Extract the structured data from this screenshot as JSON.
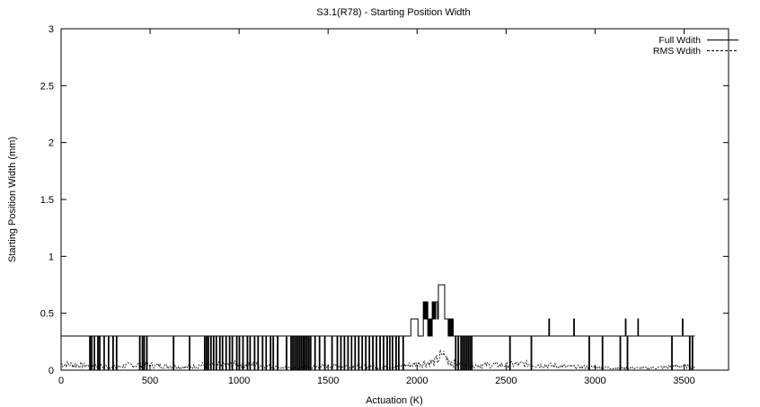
{
  "chart_data": {
    "type": "line",
    "title": "S3.1(R78) - Starting Position Width",
    "xlabel": "Actuation (K)",
    "ylabel": "Starting Position Width (mm)",
    "xlim": [
      0,
      3750
    ],
    "ylim": [
      0,
      3
    ],
    "xticks": [
      0,
      500,
      1000,
      1500,
      2000,
      2500,
      3000,
      3500
    ],
    "yticks": [
      0,
      0.5,
      1,
      1.5,
      2,
      2.5,
      3
    ],
    "legend_position": "top-right",
    "grid": false,
    "series": [
      {
        "name": "Full Wdith",
        "style": "solid",
        "color": "#000000",
        "baseline": 0.3,
        "x_range": [
          0,
          3560
        ],
        "drops_to_zero_at": [
          160,
          170,
          185,
          205,
          215,
          240,
          265,
          290,
          310,
          440,
          455,
          465,
          480,
          630,
          720,
          805,
          815,
          825,
          840,
          855,
          870,
          890,
          905,
          925,
          945,
          960,
          985,
          1000,
          1020,
          1045,
          1060,
          1085,
          1105,
          1130,
          1150,
          1175,
          1190,
          1215,
          1265,
          1290,
          1300,
          1310,
          1320,
          1330,
          1340,
          1350,
          1360,
          1370,
          1380,
          1390,
          1400,
          1425,
          1450,
          1480,
          1520,
          1550,
          1570,
          1590,
          1610,
          1630,
          1650,
          1670,
          1690,
          1710,
          1730,
          1750,
          1770,
          1790,
          1810,
          1830,
          1845,
          1860,
          1880,
          1895,
          1920,
          2050,
          2060,
          2090,
          2110,
          2200,
          2215,
          2230,
          2245,
          2255,
          2265,
          2275,
          2285,
          2295,
          2305,
          2520,
          2640,
          2965,
          3040,
          3140,
          3180,
          3430,
          3530,
          3545
        ],
        "spikes_to_0_45_at": [
          2740,
          2880,
          3170,
          3240,
          3490
        ],
        "central_region": {
          "x": [
            1960,
            1965,
            2000,
            2005,
            2030,
            2035,
            2040,
            2045,
            2050,
            2055,
            2060,
            2065,
            2070,
            2075,
            2080,
            2085,
            2090,
            2095,
            2100,
            2105,
            2110,
            2115,
            2120,
            2125,
            2150,
            2155,
            2170,
            2175,
            2180,
            2185,
            2190,
            2195,
            2200
          ],
          "y": [
            0.3,
            0.45,
            0.45,
            0.3,
            0.3,
            0.6,
            0.45,
            0.6,
            0.45,
            0.6,
            0.3,
            0.45,
            0.3,
            0.45,
            0.3,
            0.6,
            0.45,
            0.6,
            0.45,
            0.6,
            0.6,
            0.45,
            0.75,
            0.75,
            0.75,
            0.45,
            0.45,
            0.3,
            0.45,
            0.3,
            0.45,
            0.3,
            0.45
          ]
        }
      },
      {
        "name": "RMS Wdith",
        "style": "dashed",
        "color": "#000000",
        "x_range": [
          0,
          3560
        ],
        "typical_range": [
          0,
          0.1
        ],
        "peak": {
          "x": 2140,
          "y": 0.15
        },
        "sample_x": [
          0,
          100,
          200,
          300,
          400,
          500,
          600,
          700,
          800,
          900,
          1000,
          1100,
          1200,
          1300,
          1400,
          1500,
          1600,
          1700,
          1800,
          1900,
          2000,
          2100,
          2140,
          2200,
          2300,
          2400,
          2500,
          2600,
          2700,
          2800,
          2900,
          3000,
          3100,
          3200,
          3300,
          3400,
          3500,
          3560
        ],
        "sample_y": [
          0.06,
          0.05,
          0.04,
          0.03,
          0.05,
          0.05,
          0.04,
          0.03,
          0.05,
          0.05,
          0.06,
          0.05,
          0.03,
          0.02,
          0.03,
          0.04,
          0.04,
          0.04,
          0.03,
          0.04,
          0.06,
          0.08,
          0.15,
          0.07,
          0.05,
          0.05,
          0.05,
          0.06,
          0.05,
          0.04,
          0.03,
          0.03,
          0.02,
          0.02,
          0.02,
          0.03,
          0.04,
          0.03
        ]
      }
    ]
  }
}
